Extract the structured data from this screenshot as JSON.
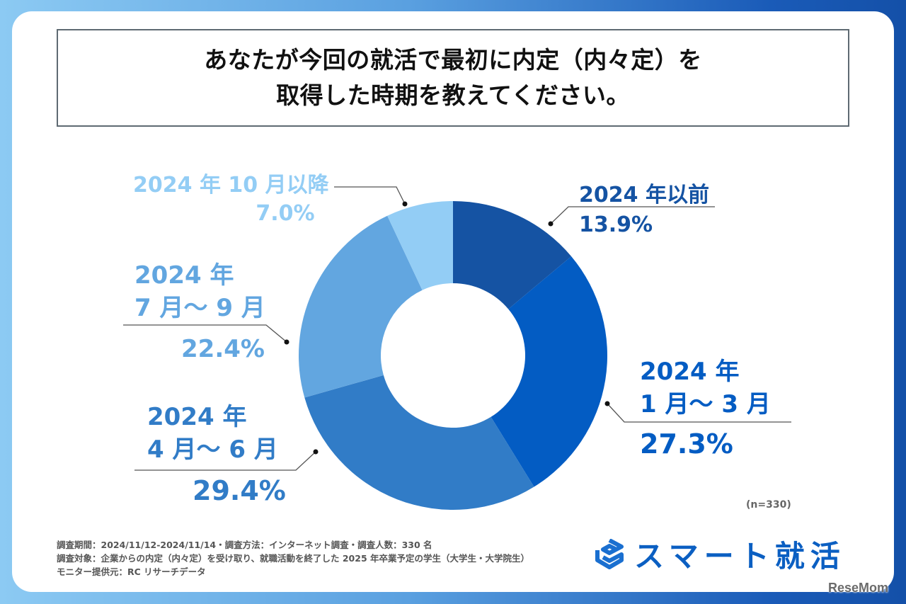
{
  "title": {
    "line1": "あなたが今回の就活で最初に内定（内々定）を",
    "line2": "取得した時期を教えてください。"
  },
  "sample_size": "(n=330)",
  "footer": {
    "line1": "調査期間：2024/11/12-2024/11/14・調査方法：インターネット調査・調査人数：330 名",
    "line2": "調査対象：企業からの内定（内々定）を受け取り、就職活動を終了した 2025 年卒業予定の学生（大学生・大学院生）",
    "line3": "モニター提供元：RC リサーチデータ"
  },
  "logo": {
    "icon": "smart-shukatsu-logo-icon",
    "text": "スマート就活"
  },
  "watermark": "ReseMom",
  "chart_data": {
    "type": "pie",
    "subtype": "donut",
    "title": "あなたが今回の就活で最初に内定（内々定）を取得した時期を教えてください。",
    "unit": "%",
    "n": 330,
    "start_angle": "12 o'clock, clockwise",
    "slices": [
      {
        "label_lines": [
          "2024 年以前"
        ],
        "value": 13.9,
        "value_label": "13.9%",
        "color": "#1553a3"
      },
      {
        "label_lines": [
          "2024 年",
          "1 月～ 3 月"
        ],
        "value": 27.3,
        "value_label": "27.3%",
        "color": "#035cc3"
      },
      {
        "label_lines": [
          "2024 年",
          "4 月～ 6 月"
        ],
        "value": 29.4,
        "value_label": "29.4%",
        "color": "#317cc7"
      },
      {
        "label_lines": [
          "2024 年",
          "7 月～ 9 月"
        ],
        "value": 22.4,
        "value_label": "22.4%",
        "color": "#62a6e0"
      },
      {
        "label_lines": [
          "2024 年 10 月以降"
        ],
        "value": 7.0,
        "value_label": "7.0%",
        "color": "#93cdf5"
      }
    ]
  }
}
